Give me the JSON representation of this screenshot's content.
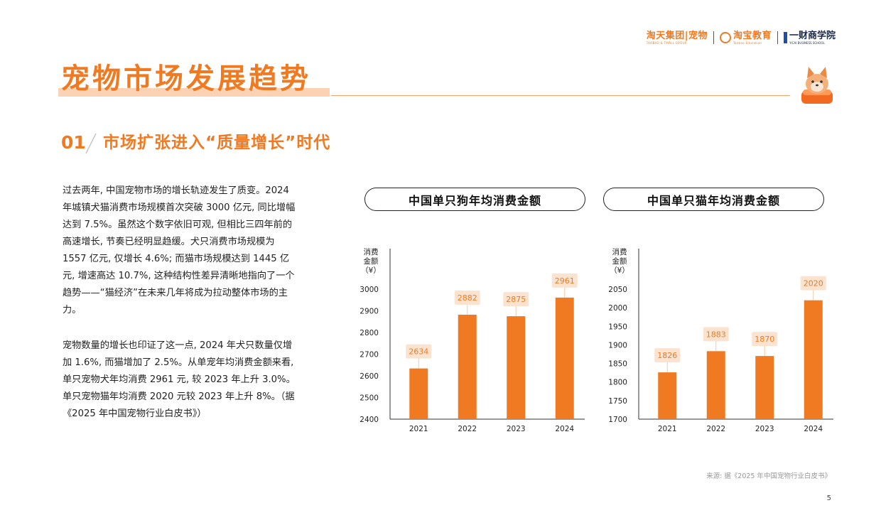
{
  "header": {
    "logo1": {
      "main": "淘天集团|宠物",
      "sub": "TAOBAO & TMALL GROUP"
    },
    "logo2": {
      "main": "淘宝教育",
      "sub": "Taobao Education"
    },
    "logo3": {
      "main": "一财商学院",
      "sub": "YICAI BUSINESS SCHOOL"
    }
  },
  "title": "宠物市场发展趋势",
  "section": {
    "number": "01",
    "title": "市场扩张进入“质量增长”时代"
  },
  "paragraphs": [
    "过去两年, 中国宠物市场的增长轨迹发生了质变。2024 年城镇犬猫消费市场规模首次突破 3000 亿元, 同比增幅达到 7.5%。虽然这个数字依旧可观, 但相比三四年前的高速增长, 节奏已经明显趋缓。犬只消费市场规模为 1557 亿元, 仅增长 4.6%; 而猫市场规模达到 1445 亿元, 增速高达 10.7%, 这种结构性差异清晰地指向了一个趋势——“猫经济”在未来几年将成为拉动整体市场的主力。",
    "宠物数量的增长也印证了这一点, 2024 年犬只数量仅增加 1.6%, 而猫增加了 2.5%。从单宠年均消费金额来看, 单只宠物犬年均消费 2961 元, 较 2023 年上升 3.0%。单只宠物猫年均消费 2020 元较 2023 年上升 8%。（据《2025 年中国宠物行业白皮书》）"
  ],
  "chart_data": [
    {
      "type": "bar",
      "title": "中国单只狗年均消费金额",
      "ylabel_lines": [
        "消费",
        "金额",
        "（¥）"
      ],
      "categories": [
        "2021",
        "2022",
        "2023",
        "2024"
      ],
      "values": [
        2634,
        2882,
        2875,
        2961
      ],
      "yticks": [
        2400,
        2500,
        2600,
        2700,
        2800,
        2900,
        3000
      ],
      "ylim": [
        2400,
        3000
      ],
      "grid": false,
      "color": "#ef7a22",
      "label_bg": "#fbe3d0"
    },
    {
      "type": "bar",
      "title": "中国单只猫年均消费金额",
      "ylabel_lines": [
        "消费",
        "金额",
        "（¥）"
      ],
      "categories": [
        "2021",
        "2022",
        "2023",
        "2024"
      ],
      "values": [
        1826,
        1883,
        1870,
        2020
      ],
      "yticks": [
        1700,
        1750,
        1800,
        1850,
        1900,
        1950,
        2000,
        2050
      ],
      "ylim": [
        1700,
        2050
      ],
      "grid": false,
      "color": "#ef7a22",
      "label_bg": "#fbe3d0"
    }
  ],
  "footer": {
    "source": "来源: 据《2025 年中国宠物行业白皮书》",
    "page": "5"
  }
}
